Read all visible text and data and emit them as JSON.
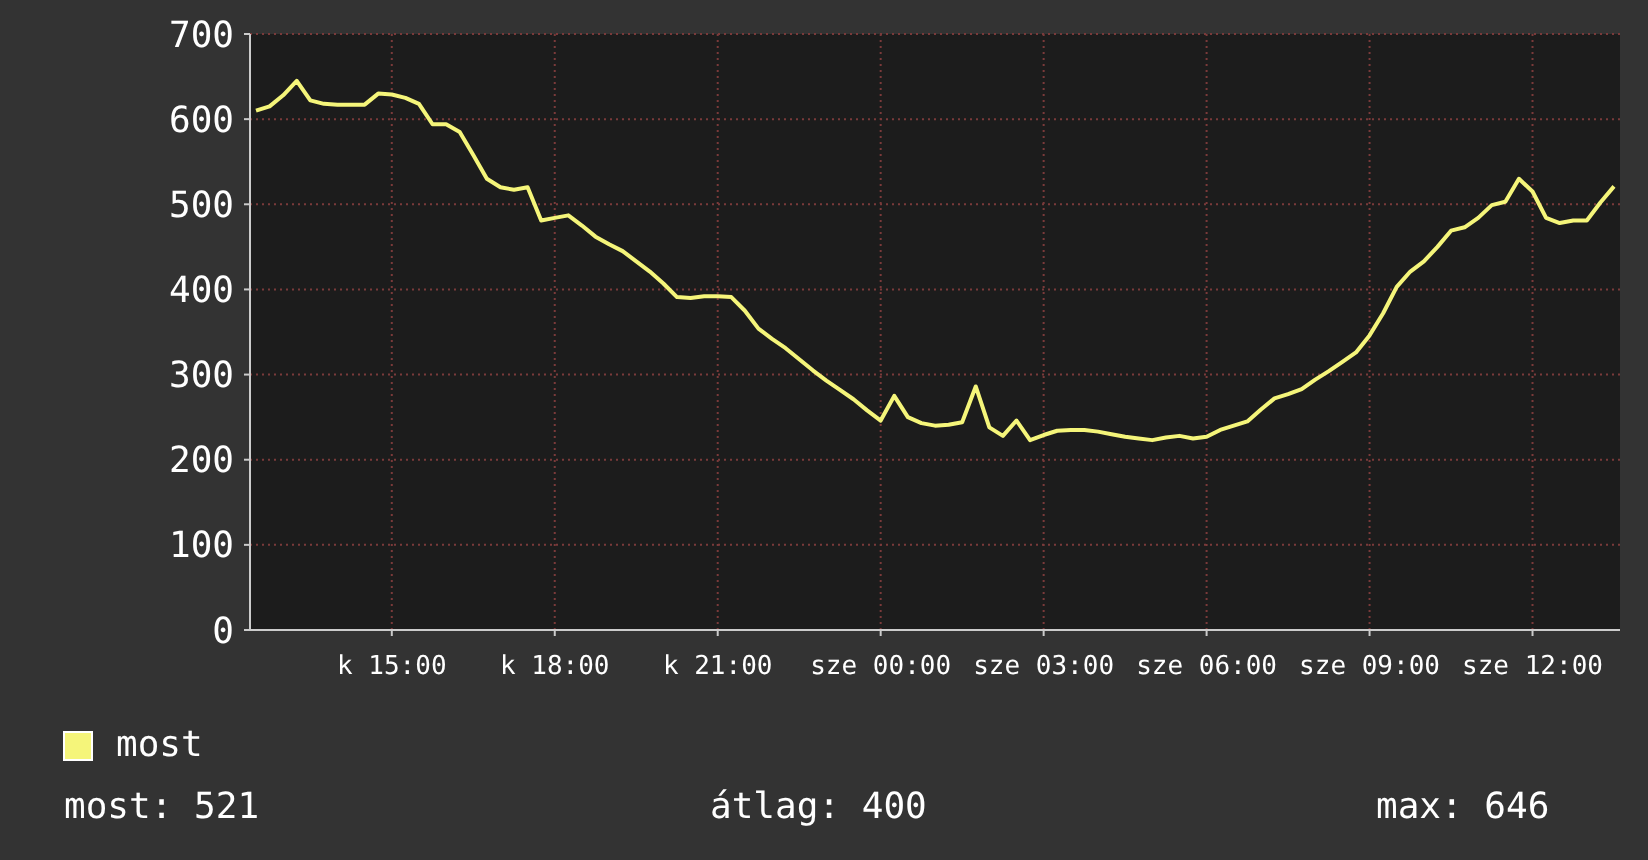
{
  "chart_data": {
    "type": "line",
    "legend": "bottom",
    "grid": true,
    "ylim": [
      0,
      700
    ],
    "yticks": [
      0,
      100,
      200,
      300,
      400,
      500,
      600,
      700
    ],
    "categories": [
      null,
      null,
      null,
      null,
      null,
      null,
      null,
      null,
      null,
      null,
      "k 15:00",
      null,
      null,
      null,
      null,
      null,
      null,
      null,
      null,
      null,
      null,
      null,
      "k 18:00",
      null,
      null,
      null,
      null,
      null,
      null,
      null,
      null,
      null,
      null,
      null,
      "k 21:00",
      null,
      null,
      null,
      null,
      null,
      null,
      null,
      null,
      null,
      null,
      null,
      "sze 00:00",
      null,
      null,
      null,
      null,
      null,
      null,
      null,
      null,
      null,
      null,
      null,
      "sze 03:00",
      null,
      null,
      null,
      null,
      null,
      null,
      null,
      null,
      null,
      null,
      null,
      "sze 06:00",
      null,
      null,
      null,
      null,
      null,
      null,
      null,
      null,
      null,
      null,
      null,
      "sze 09:00",
      null,
      null,
      null,
      null,
      null,
      null,
      null,
      null,
      null,
      null,
      null,
      "sze 12:00",
      null,
      null,
      null,
      null,
      null,
      null
    ],
    "annotations": [
      "most: 521",
      "átlag: 400",
      "max: 646"
    ],
    "series": [
      {
        "name": "most",
        "color": "#f5f57a",
        "values": [
          610,
          615,
          628,
          645,
          622,
          618,
          617,
          617,
          617,
          630,
          629,
          625,
          618,
          594,
          594,
          585,
          558,
          530,
          520,
          517,
          520,
          481,
          484,
          487,
          475,
          462,
          453,
          445,
          433,
          421,
          407,
          391,
          390,
          392,
          392,
          391,
          375,
          354,
          342,
          331,
          318,
          305,
          293,
          282,
          271,
          258,
          246,
          275,
          250,
          243,
          240,
          241,
          244,
          286,
          238,
          228,
          246,
          223,
          229,
          234,
          235,
          235,
          233,
          230,
          227,
          225,
          223,
          226,
          228,
          225,
          227,
          235,
          240,
          245,
          259,
          272,
          277,
          283,
          294,
          304,
          315,
          326,
          346,
          372,
          403,
          421,
          433,
          450,
          469,
          473,
          484,
          499,
          503,
          530,
          515,
          484,
          478,
          481,
          481,
          502,
          521
        ]
      }
    ]
  }
}
